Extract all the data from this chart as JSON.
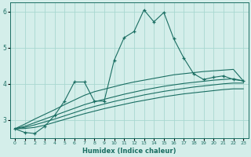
{
  "xlabel": "Humidex (Indice chaleur)",
  "background_color": "#d4eeea",
  "grid_color": "#a8d8d0",
  "line_color": "#1a6e62",
  "x_values": [
    0,
    1,
    2,
    3,
    4,
    5,
    6,
    7,
    8,
    9,
    10,
    11,
    12,
    13,
    14,
    15,
    16,
    17,
    18,
    19,
    20,
    21,
    22,
    23
  ],
  "y_main": [
    2.75,
    2.65,
    2.62,
    2.82,
    3.12,
    3.52,
    4.05,
    4.05,
    3.52,
    3.52,
    4.65,
    5.28,
    5.45,
    6.05,
    5.72,
    5.98,
    5.25,
    4.72,
    4.28,
    4.12,
    4.18,
    4.22,
    4.12,
    4.08
  ],
  "y_upper": [
    2.75,
    2.88,
    3.02,
    3.15,
    3.28,
    3.42,
    3.55,
    3.68,
    3.78,
    3.85,
    3.92,
    3.99,
    4.05,
    4.1,
    4.15,
    4.2,
    4.25,
    4.28,
    4.31,
    4.34,
    4.36,
    4.38,
    4.4,
    4.08
  ],
  "y_mid1": [
    2.75,
    2.82,
    2.92,
    3.02,
    3.12,
    3.22,
    3.32,
    3.42,
    3.5,
    3.57,
    3.64,
    3.71,
    3.77,
    3.83,
    3.88,
    3.93,
    3.97,
    4.01,
    4.04,
    4.07,
    4.1,
    4.12,
    4.14,
    4.08
  ],
  "y_mid2": [
    2.75,
    2.79,
    2.86,
    2.94,
    3.02,
    3.11,
    3.2,
    3.29,
    3.37,
    3.44,
    3.51,
    3.57,
    3.63,
    3.69,
    3.74,
    3.79,
    3.83,
    3.87,
    3.91,
    3.94,
    3.97,
    4.0,
    4.02,
    4.02
  ],
  "y_lower": [
    2.75,
    2.76,
    2.79,
    2.85,
    2.93,
    3.01,
    3.09,
    3.17,
    3.24,
    3.31,
    3.37,
    3.43,
    3.49,
    3.54,
    3.59,
    3.64,
    3.68,
    3.72,
    3.75,
    3.78,
    3.81,
    3.84,
    3.86,
    3.86
  ],
  "ylim": [
    2.5,
    6.25
  ],
  "yticks": [
    3,
    4,
    5,
    6
  ],
  "xtick_labels": [
    "0",
    "1",
    "2",
    "3",
    "4",
    "5",
    "6",
    "7",
    "8",
    "9",
    "10",
    "11",
    "12",
    "13",
    "14",
    "15",
    "16",
    "17",
    "18",
    "19",
    "20",
    "21",
    "22",
    "23"
  ]
}
